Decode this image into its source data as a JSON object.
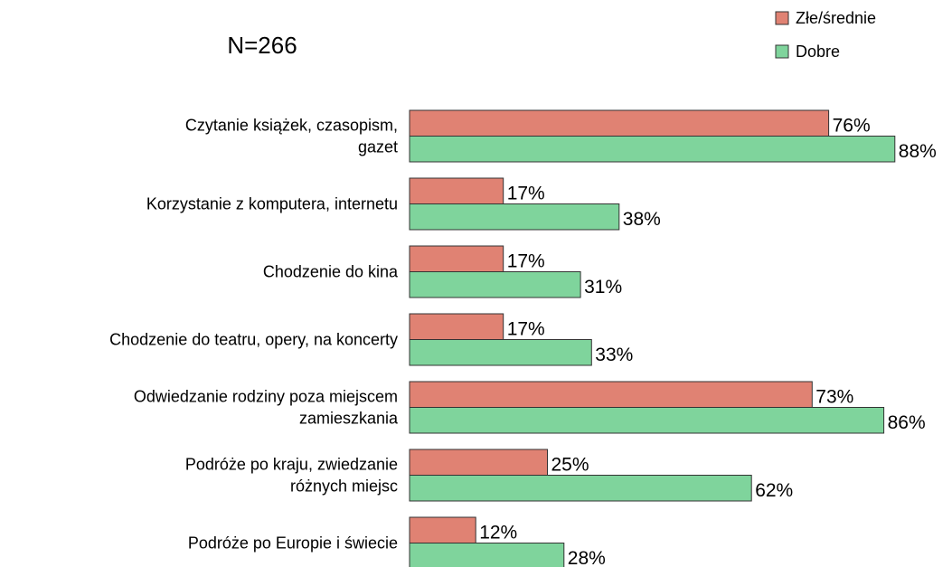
{
  "chart_data": {
    "type": "bar",
    "orientation": "horizontal",
    "annotation": "N=266",
    "categories": [
      "Czytanie książek, czasopism,\ngazet",
      "Korzystanie z komputera, internetu",
      "Chodzenie do kina",
      "Chodzenie do teatru, opery, na koncerty",
      "Odwiedzanie rodziny poza miejscem\nzamieszkania",
      "Podróże po kraju, zwiedzanie\nróżnych miejsc",
      "Podróże po Europie i świecie"
    ],
    "series": [
      {
        "name": "Złe/średnie",
        "color": "#e08273",
        "values": [
          76,
          17,
          17,
          17,
          73,
          25,
          12
        ],
        "value_labels": [
          "76%",
          "17%",
          "17%",
          "17%",
          "73%",
          "25%",
          "12%"
        ]
      },
      {
        "name": "Dobre",
        "color": "#7fd49c",
        "values": [
          88,
          38,
          31,
          33,
          86,
          62,
          28
        ],
        "value_labels": [
          "88%",
          "38%",
          "31%",
          "33%",
          "86%",
          "62%",
          "28%"
        ]
      }
    ],
    "legend": "top-right"
  }
}
